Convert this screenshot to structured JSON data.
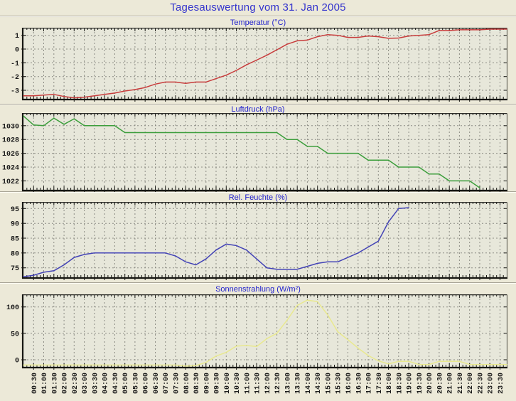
{
  "header": {
    "title": "Tagesauswertung vom 31. Jan 2005"
  },
  "colors": {
    "page_bg": "#ece9d8",
    "plot_bg": "#e7e7da",
    "grid": "#8c8c84",
    "frame": "#161612",
    "axis_text": "#1a1a1a",
    "heading_text": "#3434cd",
    "chart_title_text": "#2222cc",
    "temperature_line": "#c83c3c",
    "pressure_line": "#3c9e3c",
    "humidity_line": "#4343b6",
    "radiation_line": "#e9e98f"
  },
  "x_axis": {
    "step_minutes": 30,
    "labels": [
      "00:30",
      "01:00",
      "01:30",
      "02:00",
      "02:30",
      "03:00",
      "03:30",
      "04:00",
      "04:30",
      "05:00",
      "05:30",
      "06:00",
      "06:30",
      "07:00",
      "07:30",
      "08:00",
      "08:30",
      "09:00",
      "09:30",
      "10:00",
      "10:30",
      "11:00",
      "11:30",
      "12:00",
      "12:30",
      "13:00",
      "13:30",
      "14:00",
      "14:30",
      "15:00",
      "15:30",
      "16:00",
      "16:30",
      "17:00",
      "17:30",
      "18:00",
      "18:30",
      "19:00",
      "19:30",
      "20:00",
      "20:30",
      "21:00",
      "21:30",
      "22:00",
      "22:30",
      "23:00",
      "23:30"
    ]
  },
  "chart_data": [
    {
      "type": "line",
      "title": "Temperatur (°C)",
      "unit": "°C",
      "color_key": "temperature_line",
      "y_ticks": [
        1,
        0,
        -1,
        -2,
        -3
      ],
      "ymin": -3.62,
      "ymax": 1.5,
      "grid": true,
      "first_sample": "00:00",
      "sample_step_minutes": 30,
      "extends_to_right_edge": true,
      "values": [
        -3.4,
        -3.4,
        -3.35,
        -3.3,
        -3.45,
        -3.55,
        -3.5,
        -3.4,
        -3.3,
        -3.2,
        -3.05,
        -2.95,
        -2.8,
        -2.55,
        -2.4,
        -2.4,
        -2.5,
        -2.4,
        -2.4,
        -2.15,
        -1.9,
        -1.55,
        -1.15,
        -0.8,
        -0.45,
        -0.05,
        0.35,
        0.6,
        0.65,
        0.9,
        1.05,
        1.0,
        0.85,
        0.85,
        0.95,
        0.9,
        0.78,
        0.8,
        0.95,
        1.0,
        1.05,
        1.35,
        1.35,
        1.4,
        1.4,
        1.4,
        1.45,
        1.45
      ]
    },
    {
      "type": "line",
      "title": "Luftdruck (hPa)",
      "unit": "hPa",
      "color_key": "pressure_line",
      "y_ticks": [
        1030,
        1028,
        1026,
        1024,
        1022
      ],
      "ymin": 1020.7,
      "ymax": 1031.73,
      "grid": true,
      "first_sample": "00:00",
      "sample_step_minutes": 30,
      "extends_to_right_edge": false,
      "values": [
        1031.4,
        1030.1,
        1030,
        1031.1,
        1030.2,
        1031.0,
        1030,
        1030,
        1030,
        1030,
        1029,
        1029,
        1029,
        1029,
        1029,
        1029,
        1029,
        1029,
        1029,
        1029,
        1029,
        1029,
        1029,
        1029,
        1029,
        1029,
        1028,
        1028,
        1027,
        1027,
        1026,
        1026,
        1026,
        1026,
        1025,
        1025,
        1025,
        1024,
        1024,
        1024,
        1023,
        1023,
        1022,
        1022,
        1022,
        1021
      ]
    },
    {
      "type": "line",
      "title": "Rel. Feuchte (%)",
      "unit": "%",
      "color_key": "humidity_line",
      "y_ticks": [
        95,
        90,
        85,
        80,
        75
      ],
      "ymin": 71.8,
      "ymax": 97.0,
      "grid": true,
      "first_sample": "00:00",
      "sample_step_minutes": 30,
      "extends_to_right_edge": false,
      "values": [
        72,
        72.5,
        73.5,
        74,
        76,
        78.5,
        79.5,
        80,
        80,
        80,
        80,
        80,
        80,
        80,
        80,
        79,
        77,
        76,
        78,
        81,
        83,
        82.5,
        81,
        78,
        75,
        74.5,
        74.5,
        74.5,
        75.5,
        76.5,
        77,
        77,
        78.5,
        80,
        82,
        84,
        90.5,
        95,
        95.3
      ]
    },
    {
      "type": "line",
      "title": "Sonnenstrahlung (W/m²)",
      "unit": "W/m²",
      "color_key": "radiation_line",
      "y_ticks": [
        100,
        50,
        0
      ],
      "ymin": -13.5,
      "ymax": 122.5,
      "grid": true,
      "first_sample": "00:00",
      "sample_step_minutes": 30,
      "extends_to_right_edge": true,
      "values": [
        -10,
        -10,
        -10,
        -10,
        -10,
        -10,
        -10,
        -10,
        -10,
        -10,
        -10,
        -10,
        -10,
        -10,
        -10,
        -10,
        -12,
        -11,
        -5,
        7,
        14,
        26,
        27,
        25,
        40,
        50,
        75,
        103,
        113,
        110,
        85,
        53,
        38,
        22,
        8,
        -2,
        -8,
        -3,
        -3,
        -9,
        -9,
        -3,
        -3,
        -3,
        -9,
        -9,
        -9,
        -9
      ]
    }
  ]
}
